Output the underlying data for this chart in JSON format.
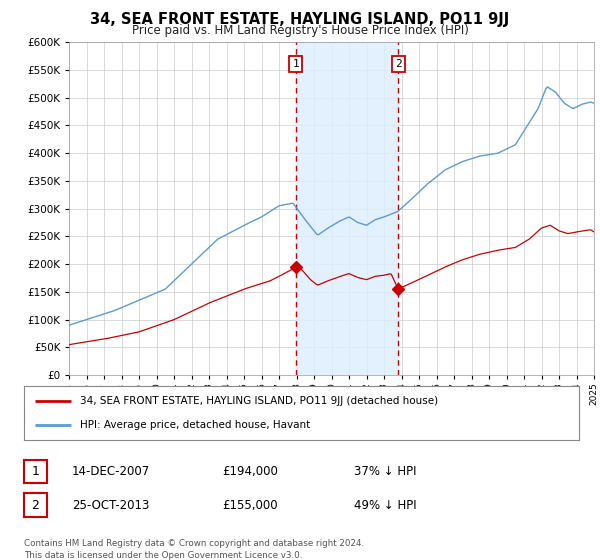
{
  "title": "34, SEA FRONT ESTATE, HAYLING ISLAND, PO11 9JJ",
  "subtitle": "Price paid vs. HM Land Registry's House Price Index (HPI)",
  "legend_line1": "34, SEA FRONT ESTATE, HAYLING ISLAND, PO11 9JJ (detached house)",
  "legend_line2": "HPI: Average price, detached house, Havant",
  "annotation1_date": "14-DEC-2007",
  "annotation1_price": "£194,000",
  "annotation1_hpi": "37% ↓ HPI",
  "annotation2_date": "25-OCT-2013",
  "annotation2_price": "£155,000",
  "annotation2_hpi": "49% ↓ HPI",
  "footer": "Contains HM Land Registry data © Crown copyright and database right 2024.\nThis data is licensed under the Open Government Licence v3.0.",
  "sale1_year": 2007.95,
  "sale1_price": 194000,
  "sale2_year": 2013.81,
  "sale2_price": 155000,
  "hpi_color": "#5b9bd5",
  "price_color": "#cc0000",
  "shade_color": "#ddeeff",
  "dashed_color": "#cc0000",
  "background_color": "#ffffff",
  "grid_color": "#cccccc",
  "ylim": [
    0,
    600000
  ],
  "xlim_start": 1995,
  "xlim_end": 2025
}
